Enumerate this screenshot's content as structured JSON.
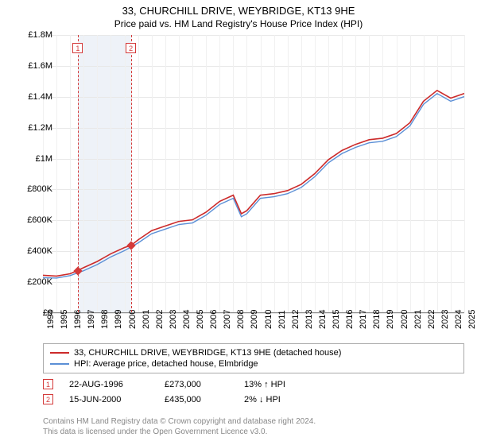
{
  "title": "33, CHURCHILL DRIVE, WEYBRIDGE, KT13 9HE",
  "subtitle": "Price paid vs. HM Land Registry's House Price Index (HPI)",
  "chart": {
    "type": "line",
    "background_color": "#ffffff",
    "grid_color": "#e8e8e8",
    "axis_color": "#888888",
    "title_fontsize": 13,
    "subtitle_fontsize": 12,
    "label_fontsize": 11,
    "ylim": [
      0,
      1800000
    ],
    "ytick_step": 200000,
    "yticks": [
      "£0",
      "£200K",
      "£400K",
      "£600K",
      "£800K",
      "£1M",
      "£1.2M",
      "£1.4M",
      "£1.6M",
      "£1.8M"
    ],
    "xlim": [
      1994,
      2025
    ],
    "xticks": [
      "1994",
      "1995",
      "1996",
      "1997",
      "1998",
      "1999",
      "2000",
      "2001",
      "2002",
      "2003",
      "2004",
      "2005",
      "2006",
      "2007",
      "2008",
      "2009",
      "2010",
      "2011",
      "2012",
      "2013",
      "2014",
      "2015",
      "2016",
      "2017",
      "2018",
      "2019",
      "2020",
      "2021",
      "2022",
      "2023",
      "2024",
      "2025"
    ],
    "band": {
      "start_year": 1996.6,
      "end_year": 2000.5,
      "color": "#eef2f8"
    },
    "series": [
      {
        "name": "price_paid",
        "label": "33, CHURCHILL DRIVE, WEYBRIDGE, KT13 9HE (detached house)",
        "color": "#cc2a2a",
        "line_width": 1.6,
        "x": [
          1994,
          1995,
          1996,
          1996.6,
          1997,
          1998,
          1999,
          2000,
          2000.5,
          2001,
          2002,
          2003,
          2004,
          2005,
          2006,
          2007,
          2008,
          2008.6,
          2009,
          2010,
          2011,
          2012,
          2013,
          2014,
          2015,
          2016,
          2017,
          2018,
          2019,
          2020,
          2021,
          2022,
          2023,
          2024,
          2025
        ],
        "y": [
          240000,
          235000,
          250000,
          273000,
          290000,
          330000,
          380000,
          420000,
          435000,
          470000,
          530000,
          560000,
          590000,
          600000,
          650000,
          720000,
          760000,
          640000,
          660000,
          760000,
          770000,
          790000,
          830000,
          900000,
          990000,
          1050000,
          1090000,
          1120000,
          1130000,
          1160000,
          1230000,
          1370000,
          1440000,
          1390000,
          1420000
        ]
      },
      {
        "name": "hpi",
        "label": "HPI: Average price, detached house, Elmbridge",
        "color": "#5b8fd6",
        "line_width": 1.4,
        "x": [
          1994,
          1995,
          1996,
          1997,
          1998,
          1999,
          2000,
          2001,
          2002,
          2003,
          2004,
          2005,
          2006,
          2007,
          2008,
          2008.6,
          2009,
          2010,
          2011,
          2012,
          2013,
          2014,
          2015,
          2016,
          2017,
          2018,
          2019,
          2020,
          2021,
          2022,
          2023,
          2024,
          2025
        ],
        "y": [
          225000,
          222000,
          238000,
          270000,
          310000,
          360000,
          400000,
          450000,
          510000,
          540000,
          570000,
          580000,
          630000,
          700000,
          740000,
          620000,
          640000,
          740000,
          750000,
          770000,
          810000,
          880000,
          970000,
          1030000,
          1070000,
          1100000,
          1110000,
          1140000,
          1210000,
          1350000,
          1420000,
          1370000,
          1400000
        ]
      }
    ],
    "events": [
      {
        "id": "1",
        "year": 1996.6,
        "y": 273000,
        "color": "#d43a3a"
      },
      {
        "id": "2",
        "year": 2000.5,
        "y": 435000,
        "color": "#d43a3a"
      }
    ]
  },
  "legend": {
    "items": [
      {
        "color": "#cc2a2a",
        "label": "33, CHURCHILL DRIVE, WEYBRIDGE, KT13 9HE (detached house)"
      },
      {
        "color": "#5b8fd6",
        "label": "HPI: Average price, detached house, Elmbridge"
      }
    ]
  },
  "event_table": [
    {
      "id": "1",
      "date": "22-AUG-1996",
      "price": "£273,000",
      "delta": "13% ↑ HPI"
    },
    {
      "id": "2",
      "date": "15-JUN-2000",
      "price": "£435,000",
      "delta": "2% ↓ HPI"
    }
  ],
  "footer": {
    "line1": "Contains HM Land Registry data © Crown copyright and database right 2024.",
    "line2": "This data is licensed under the Open Government Licence v3.0."
  }
}
